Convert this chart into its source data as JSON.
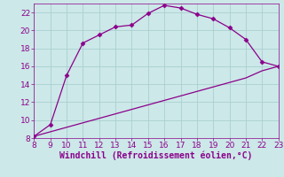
{
  "xlabel": "Windchill (Refroidissement éolien,°C)",
  "x_data": [
    8,
    9,
    10,
    11,
    12,
    13,
    14,
    15,
    16,
    17,
    18,
    19,
    20,
    21,
    22,
    23
  ],
  "y_upper": [
    8.2,
    9.5,
    15.0,
    18.6,
    19.5,
    20.4,
    20.6,
    21.9,
    22.8,
    22.5,
    21.8,
    21.3,
    20.3,
    19.0,
    16.5,
    16.0
  ],
  "y_lower": [
    8.2,
    8.7,
    9.2,
    9.7,
    10.2,
    10.7,
    11.2,
    11.7,
    12.2,
    12.7,
    13.2,
    13.7,
    14.2,
    14.7,
    15.5,
    16.0
  ],
  "line_color": "#8B008B",
  "marker": "D",
  "marker_size": 2.5,
  "bg_color": "#cce8e8",
  "grid_color": "#aad0d0",
  "xlim": [
    8,
    23
  ],
  "ylim": [
    8,
    23
  ],
  "xticks": [
    8,
    9,
    10,
    11,
    12,
    13,
    14,
    15,
    16,
    17,
    18,
    19,
    20,
    21,
    22,
    23
  ],
  "yticks": [
    8,
    10,
    12,
    14,
    16,
    18,
    20,
    22
  ],
  "tick_color": "#8B008B",
  "label_color": "#8B008B",
  "tick_fontsize": 6.5,
  "xlabel_fontsize": 7.0
}
